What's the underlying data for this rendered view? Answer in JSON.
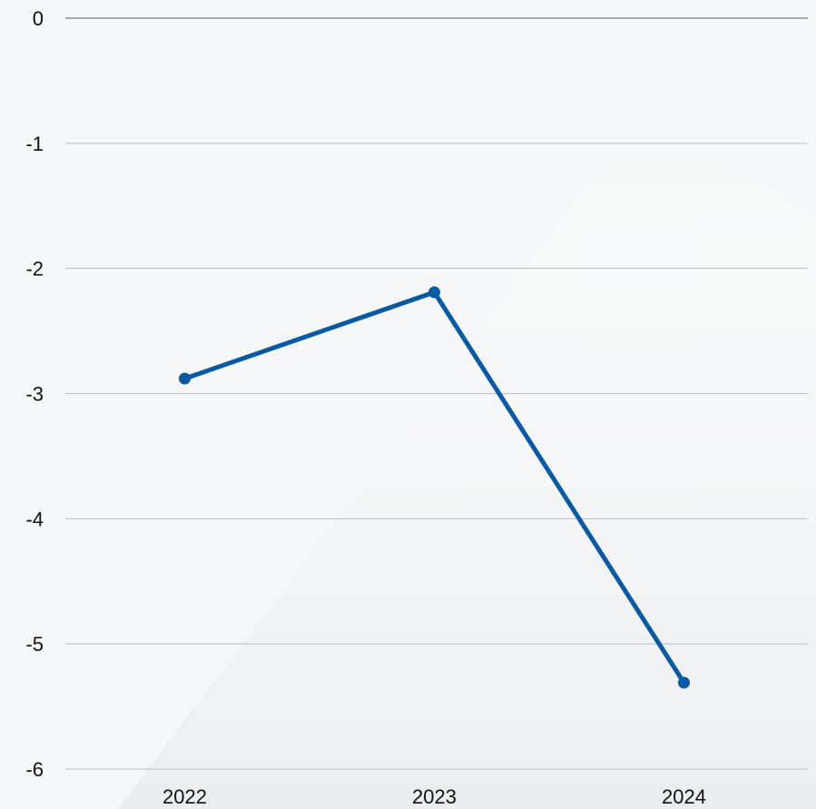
{
  "chart_data": {
    "type": "line",
    "title": "",
    "xlabel": "",
    "ylabel": "",
    "categories": [
      "2022",
      "2023",
      "2024"
    ],
    "series": [
      {
        "values": [
          -2.88,
          -2.19,
          -5.31
        ],
        "color": "#0a5aa3"
      }
    ],
    "ylim": [
      -6,
      0
    ],
    "yticks": [
      0,
      -1,
      -2,
      -3,
      -4,
      -5,
      -6
    ],
    "ytick_labels": [
      "0",
      "-1",
      "-2",
      "-3",
      "-4",
      "-5",
      "-6"
    ],
    "grid": true,
    "gridline_color": "#bdbdbd",
    "baseline_color": "#555555",
    "background_color": "#f6f7f8"
  }
}
